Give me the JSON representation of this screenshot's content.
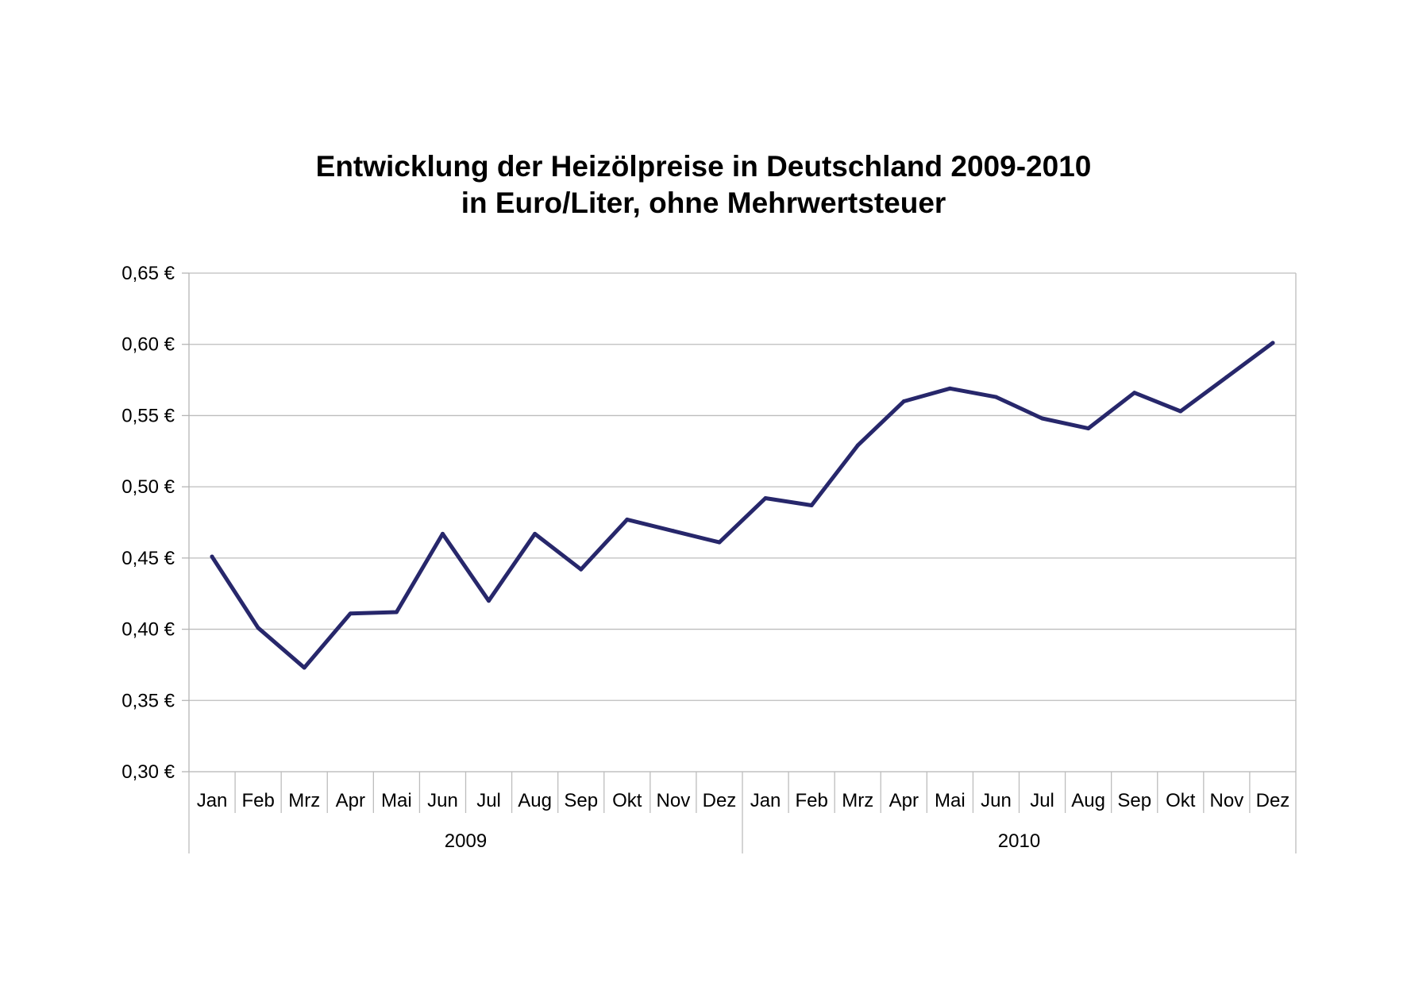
{
  "chart_data": {
    "type": "line",
    "title": "Entwicklung der Heizölpreise in Deutschland 2009-2010",
    "subtitle": "in Euro/Liter, ohne Mehrwertsteuer",
    "xlabel": "",
    "ylabel": "",
    "ylim": [
      0.3,
      0.65
    ],
    "yticks": [
      0.3,
      0.35,
      0.4,
      0.45,
      0.5,
      0.55,
      0.6,
      0.65
    ],
    "ytick_labels": [
      "0,30 €",
      "0,35 €",
      "0,40 €",
      "0,45 €",
      "0,50 €",
      "0,55 €",
      "0,60 €",
      "0,65 €"
    ],
    "grid": true,
    "legend": "none",
    "categories": [
      "Jan",
      "Feb",
      "Mrz",
      "Apr",
      "Mai",
      "Jun",
      "Jul",
      "Aug",
      "Sep",
      "Okt",
      "Nov",
      "Dez",
      "Jan",
      "Feb",
      "Mrz",
      "Apr",
      "Mai",
      "Jun",
      "Jul",
      "Aug",
      "Sep",
      "Okt",
      "Nov",
      "Dez"
    ],
    "groups": [
      {
        "label": "2009",
        "count": 12
      },
      {
        "label": "2010",
        "count": 12
      }
    ],
    "series": [
      {
        "color": "#27276b",
        "values": [
          0.451,
          0.401,
          0.373,
          0.411,
          0.412,
          0.467,
          0.42,
          0.467,
          0.442,
          0.477,
          0.469,
          0.461,
          0.492,
          0.487,
          0.529,
          0.56,
          0.569,
          0.563,
          0.548,
          0.541,
          0.566,
          0.553,
          0.577,
          0.601
        ]
      }
    ]
  }
}
